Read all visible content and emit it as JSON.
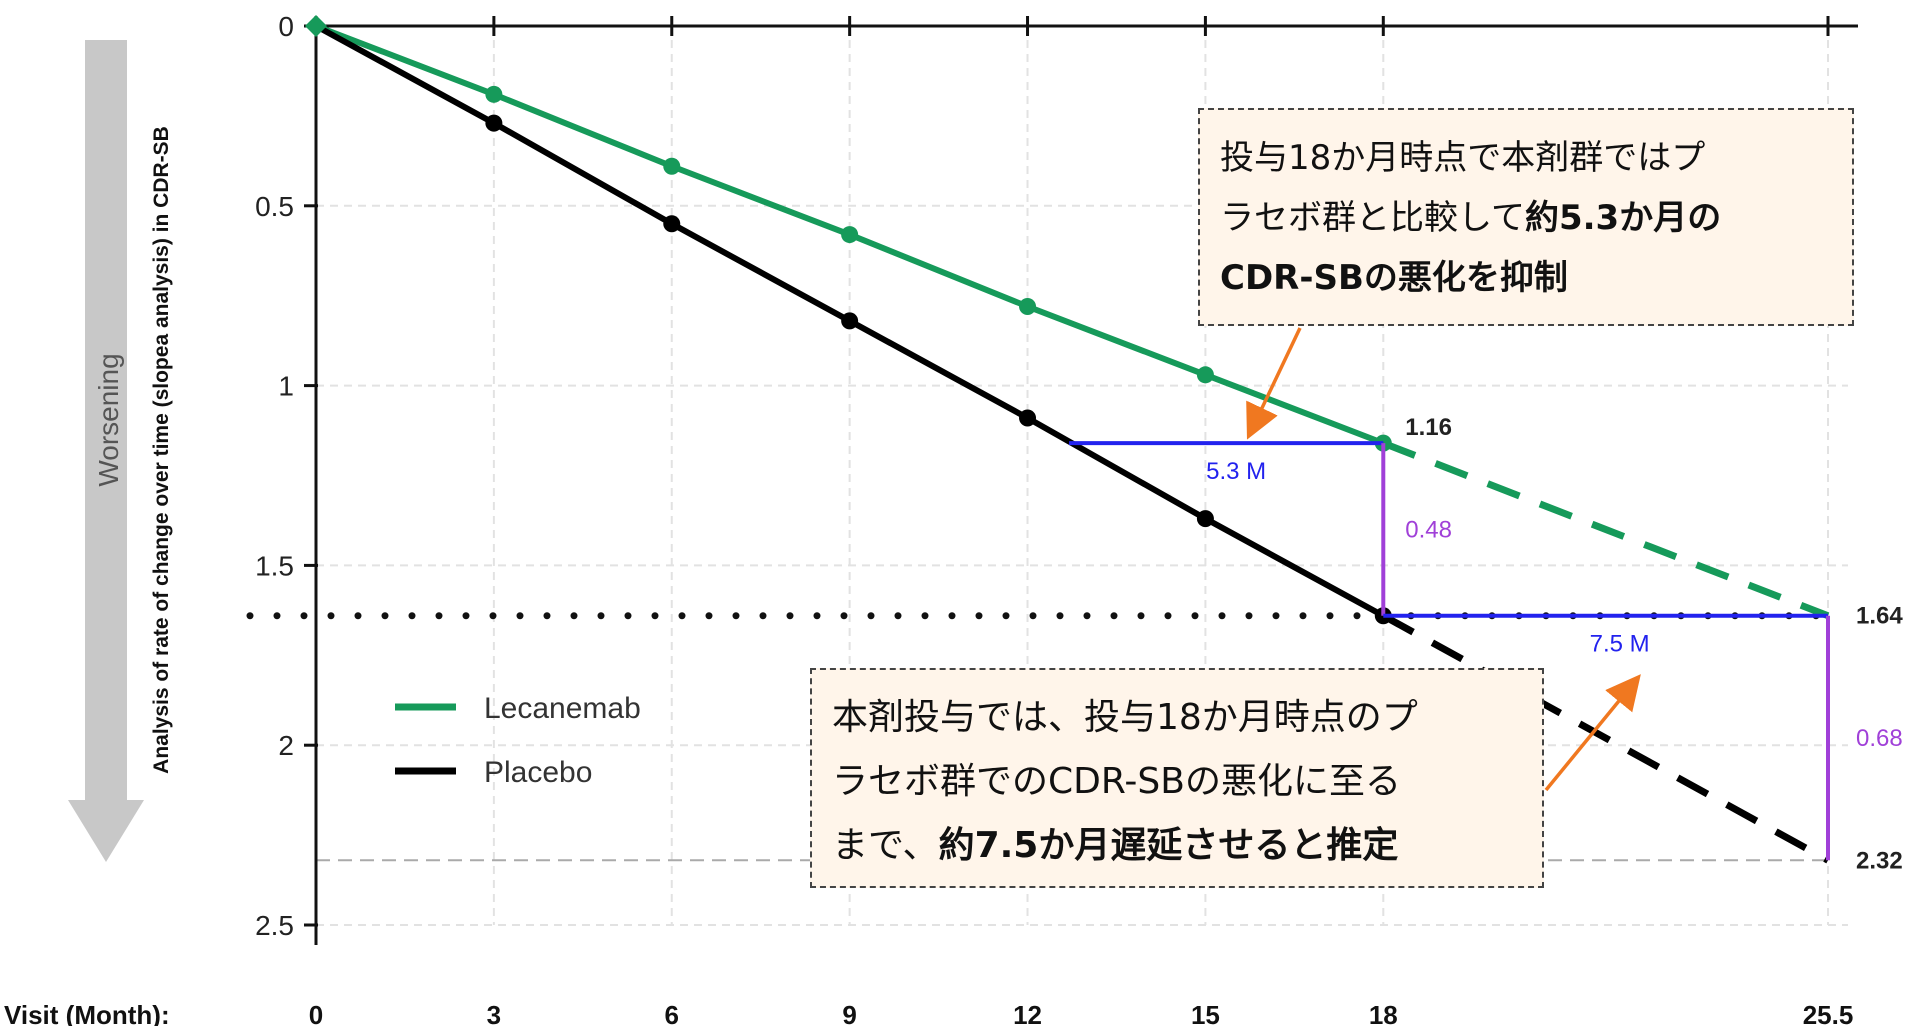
{
  "chart_data": {
    "type": "line",
    "title": "",
    "xlabel": "Visit (Month):",
    "ylabel": "Analysis of rate of  change over time (slopea analysis) in CDR-SB",
    "side_arrow_label": "Worsening",
    "x_ticks": [
      0,
      3,
      6,
      9,
      12,
      15,
      18,
      25.5
    ],
    "x_tick_labels": [
      "0",
      "3",
      "6",
      "9",
      "12",
      "15",
      "18",
      "25.5"
    ],
    "y_ticks": [
      0,
      0.5,
      1,
      1.5,
      2,
      2.5
    ],
    "y_tick_labels": [
      "0",
      "0.5",
      "1",
      "1.5",
      "2",
      "2.5"
    ],
    "xlim": [
      0,
      25.5
    ],
    "ylim": [
      0,
      2.5
    ],
    "y_inverted": true,
    "grid": true,
    "legend_position": "lower-left",
    "series": [
      {
        "name": "Lecanemab",
        "color": "#169a5a",
        "x": [
          0,
          3,
          6,
          9,
          12,
          15,
          18
        ],
        "y": [
          0,
          0.19,
          0.39,
          0.58,
          0.78,
          0.97,
          1.16
        ],
        "projection": {
          "x": [
            18,
            25.5
          ],
          "y": [
            1.16,
            1.64
          ]
        }
      },
      {
        "name": "Placebo",
        "color": "#000000",
        "x": [
          0,
          3,
          6,
          9,
          12,
          15,
          18
        ],
        "y": [
          0,
          0.27,
          0.55,
          0.82,
          1.09,
          1.37,
          1.64
        ],
        "projection": {
          "x": [
            18,
            25.5
          ],
          "y": [
            1.64,
            2.32
          ]
        }
      }
    ],
    "value_labels": {
      "lecanemab_18": "1.16",
      "lecanemab_25_5": "1.64",
      "placebo_25_5": "2.32"
    },
    "reference_lines": {
      "dotted_y": 1.64,
      "dashed_y": 2.32
    },
    "annotations": {
      "delay_18": {
        "label": "5.3 M",
        "x_from": 12.7,
        "x_to": 18,
        "y": 1.16,
        "color": "#2222ee"
      },
      "diff_18": {
        "label": "0.48",
        "x": 18,
        "y_from": 1.16,
        "y_to": 1.64,
        "color": "#a040d8"
      },
      "delay_25_5": {
        "label": "7.5 M",
        "x_from": 18,
        "x_to": 25.5,
        "y": 1.64,
        "color": "#2222ee"
      },
      "diff_25_5": {
        "label": "0.68",
        "x": 25.5,
        "y_from": 1.64,
        "y_to": 2.32,
        "color": "#a040d8"
      }
    },
    "callouts": {
      "top": {
        "line1": "投与18か月時点で本剤群ではプ",
        "line2_normal": "ラセボ群と比較して",
        "line2_bold": "約5.3か月の",
        "line3_bold": "CDR-SBの悪化を抑制"
      },
      "bottom": {
        "line1": "本剤投与では、投与18か月時点のプ",
        "line2": "ラセボ群でのCDR-SBの悪化に至る",
        "line3_normal": "まで、",
        "line3_bold": "約7.5か月遅延させると推定"
      }
    },
    "arrow_color": "#f07820"
  }
}
